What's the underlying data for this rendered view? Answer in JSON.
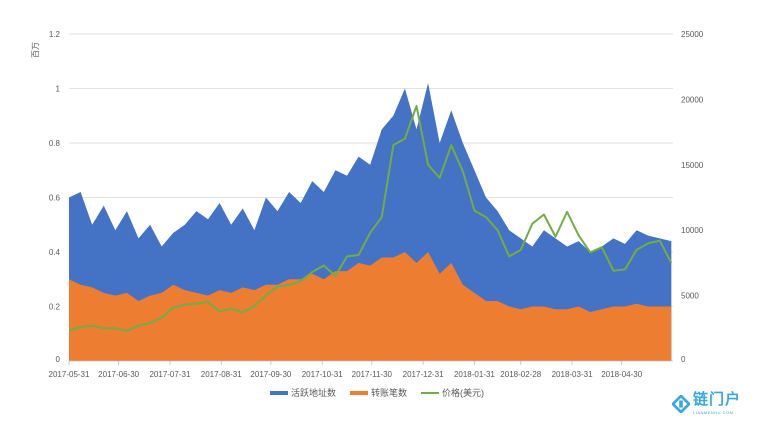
{
  "chart_data": {
    "type": "area",
    "title": "",
    "y_left_unit": "百万",
    "ylim_left": [
      0,
      1.2
    ],
    "yticks_left": [
      "0",
      "0.2",
      "0.4",
      "0.6",
      "0.8",
      "1",
      "1.2"
    ],
    "ylim_right": [
      0,
      25000
    ],
    "yticks_right": [
      "0",
      "5000",
      "10000",
      "15000",
      "20000",
      "25000"
    ],
    "x_start": "2017-05-31",
    "x_end": "2018-05-31",
    "x_step_days": 7,
    "xticks": [
      "2017-05-31",
      "2017-06-30",
      "2017-07-31",
      "2017-08-31",
      "2017-09-30",
      "2017-10-31",
      "2017-11-30",
      "2017-12-31",
      "2018-01-31",
      "2018-02-28",
      "2018-03-31",
      "2018-04-30"
    ],
    "grid": true,
    "legend_position": "bottom",
    "series": [
      {
        "name": "活跃地址数",
        "axis": "left",
        "kind": "area",
        "color": "#4472c4",
        "values": [
          0.6,
          0.62,
          0.5,
          0.57,
          0.48,
          0.55,
          0.45,
          0.5,
          0.42,
          0.47,
          0.5,
          0.55,
          0.52,
          0.58,
          0.5,
          0.56,
          0.48,
          0.6,
          0.55,
          0.62,
          0.58,
          0.66,
          0.62,
          0.7,
          0.68,
          0.75,
          0.72,
          0.85,
          0.9,
          1.0,
          0.85,
          1.02,
          0.8,
          0.92,
          0.8,
          0.7,
          0.6,
          0.55,
          0.48,
          0.45,
          0.42,
          0.48,
          0.45,
          0.42,
          0.44,
          0.4,
          0.42,
          0.45,
          0.43,
          0.48,
          0.46,
          0.45,
          0.44
        ]
      },
      {
        "name": "转账笔数",
        "axis": "left",
        "kind": "area",
        "color": "#ed7d31",
        "values": [
          0.3,
          0.28,
          0.27,
          0.25,
          0.24,
          0.25,
          0.22,
          0.24,
          0.25,
          0.28,
          0.26,
          0.25,
          0.24,
          0.26,
          0.25,
          0.27,
          0.26,
          0.28,
          0.28,
          0.3,
          0.3,
          0.32,
          0.3,
          0.33,
          0.33,
          0.36,
          0.35,
          0.38,
          0.38,
          0.4,
          0.36,
          0.4,
          0.32,
          0.36,
          0.28,
          0.25,
          0.22,
          0.22,
          0.2,
          0.19,
          0.2,
          0.2,
          0.19,
          0.19,
          0.2,
          0.18,
          0.19,
          0.2,
          0.2,
          0.21,
          0.2,
          0.2,
          0.2
        ]
      },
      {
        "name": "价格(美元)",
        "axis": "right",
        "kind": "line",
        "color": "#70ad47",
        "values": [
          2300,
          2600,
          2700,
          2500,
          2500,
          2300,
          2700,
          2900,
          3300,
          4100,
          4300,
          4400,
          4500,
          3800,
          4000,
          3700,
          4200,
          5000,
          5700,
          5800,
          6100,
          6800,
          7300,
          6500,
          8000,
          8100,
          9800,
          11000,
          16500,
          17000,
          19500,
          15000,
          14000,
          16500,
          14500,
          11500,
          11000,
          10000,
          8000,
          8500,
          10500,
          11200,
          9500,
          11400,
          9600,
          8300,
          8700,
          6900,
          7000,
          8500,
          9000,
          9200,
          7500
        ]
      }
    ]
  },
  "watermark": {
    "cn": "链门户",
    "en": "LIANMENHU.COM"
  }
}
